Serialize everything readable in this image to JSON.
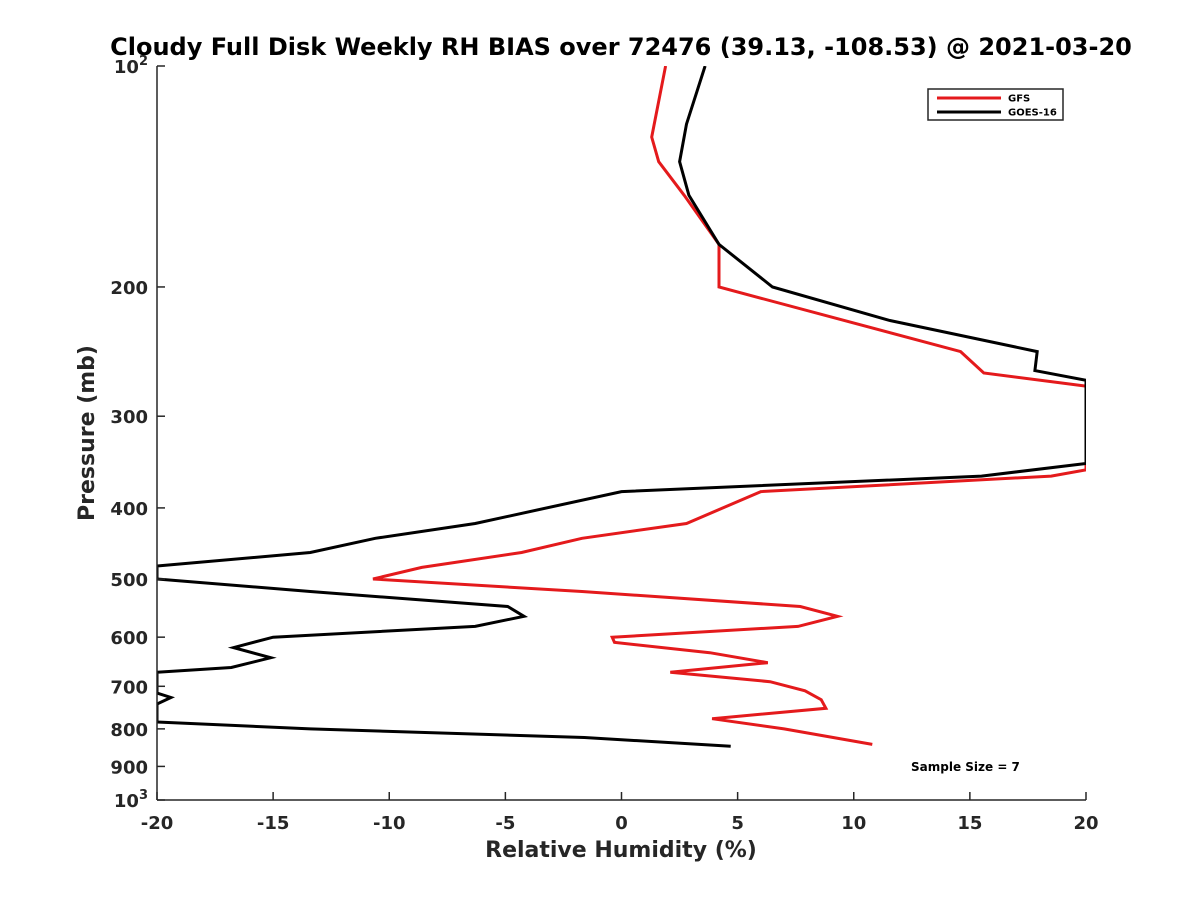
{
  "chart_data": {
    "type": "line",
    "title": "Cloudy Full Disk Weekly RH BIAS over 72476 (39.13, -108.53) @ 2021-03-20",
    "xlabel": "Relative Humidity (%)",
    "ylabel": "Pressure (mb)",
    "xlim": [
      -20,
      20
    ],
    "ylim": [
      100,
      1000
    ],
    "yscale": "log",
    "y_reversed": true,
    "grid": false,
    "legend_position": "top-right",
    "x_ticks": [
      -20,
      -15,
      -10,
      -5,
      0,
      5,
      10,
      15,
      20
    ],
    "x_tick_labels": [
      "-20",
      "-15",
      "-10",
      "-5",
      "0",
      "5",
      "10",
      "15",
      "20"
    ],
    "y_ticks": [
      {
        "value": 100,
        "base": "10",
        "exp": "2",
        "text": ""
      },
      {
        "value": 200,
        "text": "200"
      },
      {
        "value": 300,
        "text": "300"
      },
      {
        "value": 400,
        "text": "400"
      },
      {
        "value": 500,
        "text": "500"
      },
      {
        "value": 600,
        "text": "600"
      },
      {
        "value": 700,
        "text": "700"
      },
      {
        "value": 800,
        "text": "800"
      },
      {
        "value": 900,
        "text": "900"
      },
      {
        "value": 1000,
        "base": "10",
        "exp": "3",
        "text": ""
      }
    ],
    "annotation": "Sample Size = 7",
    "series": [
      {
        "name": "GFS",
        "color": "#e41a1c",
        "points": [
          [
            1.9,
            100
          ],
          [
            1.3,
            125
          ],
          [
            1.6,
            135
          ],
          [
            2.7,
            150
          ],
          [
            4.2,
            175
          ],
          [
            4.2,
            200
          ],
          [
            14.6,
            245
          ],
          [
            15.6,
            262
          ],
          [
            20,
            273
          ],
          [
            20,
            355
          ],
          [
            18.5,
            362
          ],
          [
            6.0,
            380
          ],
          [
            2.8,
            420
          ],
          [
            -1.7,
            440
          ],
          [
            -4.3,
            460
          ],
          [
            -8.6,
            482
          ],
          [
            -10.7,
            500
          ],
          [
            -1.7,
            520
          ],
          [
            7.7,
            545
          ],
          [
            9.3,
            562
          ],
          [
            7.6,
            580
          ],
          [
            -0.4,
            600
          ],
          [
            -0.3,
            610
          ],
          [
            3.8,
            630
          ],
          [
            6.3,
            650
          ],
          [
            2.1,
            670
          ],
          [
            6.4,
            690
          ],
          [
            7.9,
            710
          ],
          [
            8.6,
            730
          ],
          [
            8.8,
            750
          ],
          [
            3.9,
            775
          ],
          [
            7.0,
            800
          ],
          [
            10.8,
            840
          ]
        ]
      },
      {
        "name": "GOES-16",
        "color": "#000000",
        "points": [
          [
            3.6,
            100
          ],
          [
            2.8,
            120
          ],
          [
            2.5,
            135
          ],
          [
            2.9,
            150
          ],
          [
            4.2,
            175
          ],
          [
            6.5,
            200
          ],
          [
            11.5,
            222
          ],
          [
            17.9,
            245
          ],
          [
            17.8,
            260
          ],
          [
            20,
            268
          ],
          [
            20,
            348
          ],
          [
            15.5,
            362
          ],
          [
            0.0,
            380
          ],
          [
            -6.3,
            420
          ],
          [
            -10.6,
            440
          ],
          [
            -13.4,
            460
          ],
          [
            -20,
            480
          ],
          [
            -20,
            500
          ],
          [
            -13.4,
            520
          ],
          [
            -4.9,
            545
          ],
          [
            -4.2,
            562
          ],
          [
            -6.3,
            580
          ],
          [
            -15.0,
            600
          ],
          [
            -16.7,
            620
          ],
          [
            -15.1,
            640
          ],
          [
            -16.8,
            660
          ],
          [
            -20,
            670
          ],
          [
            -20,
            715
          ],
          [
            -19.4,
            725
          ],
          [
            -20,
            740
          ],
          [
            -20,
            783
          ],
          [
            -13.4,
            800
          ],
          [
            -1.6,
            822
          ],
          [
            4.7,
            845
          ]
        ]
      }
    ]
  }
}
